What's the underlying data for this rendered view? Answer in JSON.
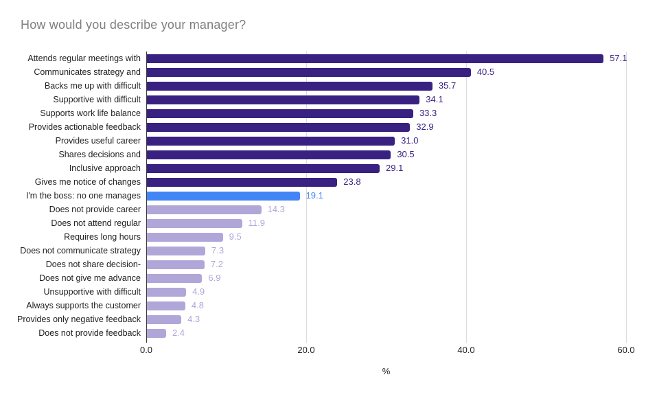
{
  "chart_data": {
    "type": "bar",
    "orientation": "horizontal",
    "title": "How would you describe your manager?",
    "xlabel": "%",
    "xlim": [
      0,
      60
    ],
    "xticks": [
      0,
      20,
      40,
      60
    ],
    "xtick_labels": [
      "0.0",
      "20.0",
      "40.0",
      "60.0"
    ],
    "grid": "vertical-only",
    "legend": "none",
    "categories": [
      "Attends regular meetings with",
      "Communicates strategy and",
      "Backs me up with difficult",
      "Supportive with difficult",
      "Supports work life balance",
      "Provides actionable feedback",
      "Provides useful career",
      "Shares decisions and",
      "Inclusive approach",
      "Gives me notice of changes",
      "I'm the boss: no one manages",
      "Does not provide career",
      "Does not attend regular",
      "Requires long hours",
      "Does not communicate strategy",
      "Does not share decision-",
      "Does not give me advance",
      "Unsupportive with difficult",
      "Always supports the customer",
      "Provides only negative feedback",
      "Does not provide feedback"
    ],
    "values": [
      57.1,
      40.5,
      35.7,
      34.1,
      33.3,
      32.9,
      31.0,
      30.5,
      29.1,
      23.8,
      19.1,
      14.3,
      11.9,
      9.5,
      7.3,
      7.2,
      6.9,
      4.9,
      4.8,
      4.3,
      2.4
    ],
    "bar_colors": [
      "#392181",
      "#392181",
      "#392181",
      "#392181",
      "#392181",
      "#392181",
      "#392181",
      "#392181",
      "#392181",
      "#392181",
      "#4285F4",
      "#B0A7D8",
      "#B0A7D8",
      "#B0A7D8",
      "#B0A7D8",
      "#B0A7D8",
      "#B0A7D8",
      "#B0A7D8",
      "#B0A7D8",
      "#B0A7D8",
      "#B0A7D8"
    ],
    "colors": {
      "dark_purple": "#392181",
      "blue": "#4285F4",
      "light_purple": "#B0A7D8",
      "gridline": "#DADCE0",
      "axis_line": "#3c3c3c",
      "title_text": "#7f7f7f",
      "category_text": "#212121",
      "background": "#ffffff"
    }
  }
}
